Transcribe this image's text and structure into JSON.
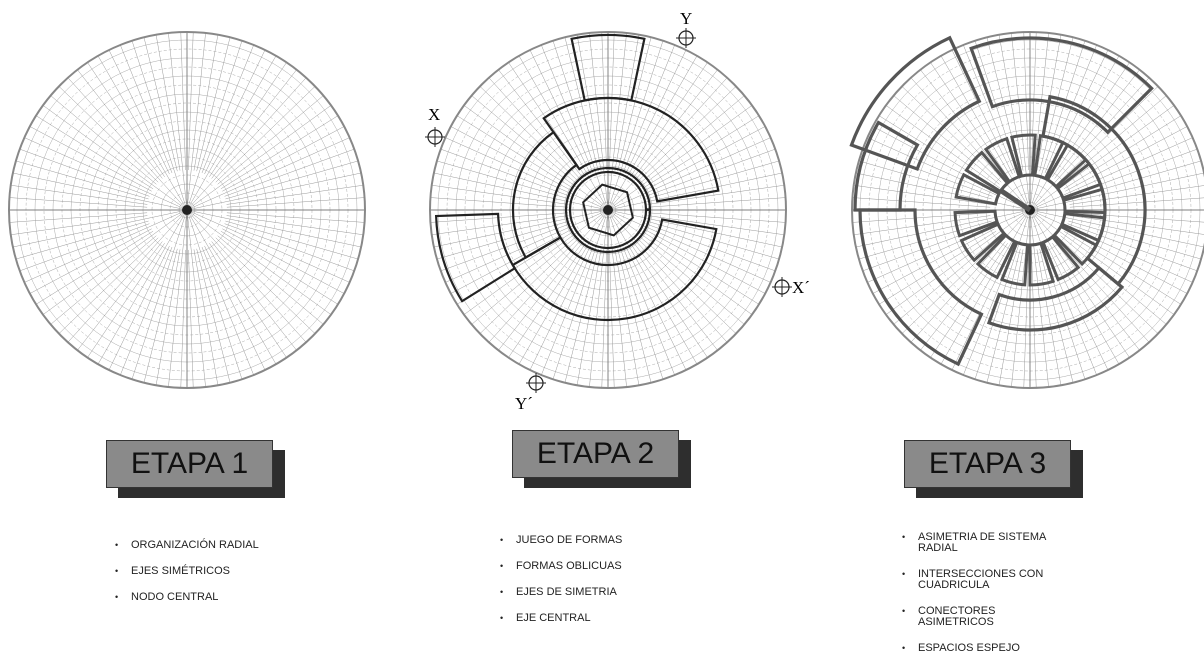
{
  "stages": [
    {
      "title": "ETAPA 1",
      "bullets": [
        "ORGANIZACIÓN RADIAL",
        "EJES SIMÉTRICOS",
        "NODO CENTRAL"
      ]
    },
    {
      "title": "ETAPA 2",
      "bullets": [
        "JUEGO DE FORMAS",
        "FORMAS OBLICUAS",
        "EJES DE SIMETRIA",
        "EJE CENTRAL"
      ]
    },
    {
      "title": "ETAPA 3",
      "bullets": [
        "ASIMETRIA DE SISTEMA RADIAL",
        "INTERSECCIONES CON CUADRICULA",
        "CONECTORES ASIMETRICOS",
        "ESPACIOS ESPEJO"
      ]
    }
  ],
  "axes": {
    "x": "X",
    "y": "Y",
    "x_prime": "X´",
    "y_prime": "Y´"
  }
}
